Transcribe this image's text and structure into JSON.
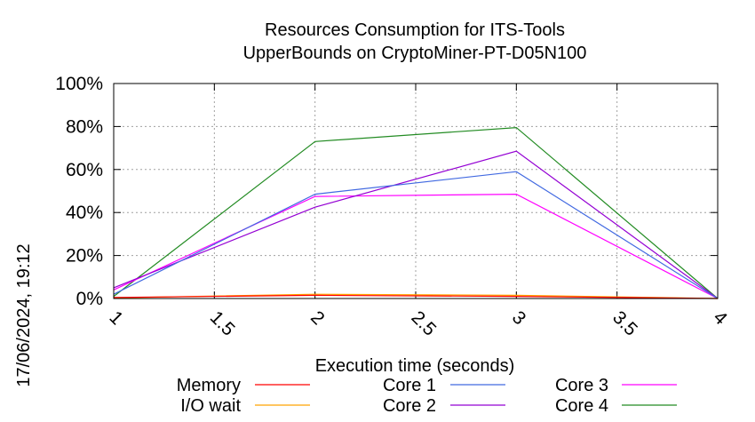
{
  "chart_data": {
    "type": "line",
    "title": "Resources Consumption for ITS-Tools",
    "subtitle": "UpperBounds on CryptoMiner-PT-D05N100",
    "xlabel": "Execution time (seconds)",
    "ylabel": "",
    "side_label": "17/06/2024, 19:12",
    "xlim": [
      1,
      4
    ],
    "ylim": [
      0,
      100
    ],
    "x_ticks": [
      1,
      1.5,
      2,
      2.5,
      3,
      3.5,
      4
    ],
    "x_tick_labels": [
      "1",
      "1.5",
      "2",
      "2.5",
      "3",
      "3.5",
      "4"
    ],
    "y_ticks": [
      0,
      20,
      40,
      60,
      80,
      100
    ],
    "y_tick_labels": [
      "0%",
      "20%",
      "40%",
      "60%",
      "80%",
      "100%"
    ],
    "grid": true,
    "legend_placement": "bottom",
    "x": [
      1,
      2,
      3,
      4
    ],
    "series": [
      {
        "name": "Memory",
        "color": "#ff0000",
        "values": [
          0.5,
          1.5,
          1.0,
          0
        ]
      },
      {
        "name": "I/O wait",
        "color": "#ffa500",
        "values": [
          0.3,
          2.0,
          1.5,
          0
        ]
      },
      {
        "name": "Core 1",
        "color": "#4169e1",
        "values": [
          2.0,
          48.5,
          59.0,
          0
        ]
      },
      {
        "name": "Core 2",
        "color": "#9400d3",
        "values": [
          5.0,
          42.5,
          68.5,
          0
        ]
      },
      {
        "name": "Core 3",
        "color": "#ff00ff",
        "values": [
          4.0,
          47.5,
          48.5,
          0
        ]
      },
      {
        "name": "Core 4",
        "color": "#228b22",
        "values": [
          1.0,
          73.0,
          79.5,
          0
        ]
      }
    ]
  }
}
